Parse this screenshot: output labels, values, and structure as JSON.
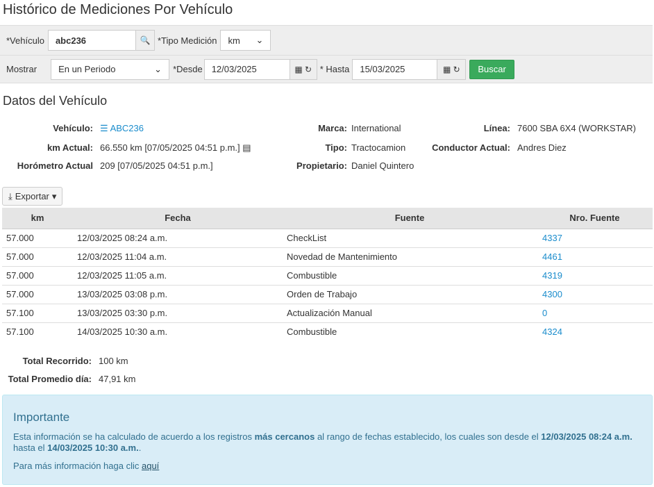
{
  "title": "Histórico de Mediciones Por Vehículo",
  "filters": {
    "vehiculo_label": "*Vehículo",
    "vehiculo_value": "abc236",
    "tipo_label": "*Tipo Medición",
    "tipo_value": "km",
    "mostrar_label": "Mostrar",
    "mostrar_value": "En un Periodo",
    "desde_label": "*Desde",
    "desde_value": "12/03/2025",
    "hasta_label": "* Hasta",
    "hasta_value": "15/03/2025",
    "buscar": "Buscar"
  },
  "vehicle": {
    "heading": "Datos del Vehículo",
    "vehiculo_k": "Vehículo:",
    "vehiculo_v": "ABC236",
    "km_k": "km Actual:",
    "km_v": "66.550 km [07/05/2025 04:51 p.m.]",
    "hor_k": "Horómetro Actual",
    "hor_v": "209 [07/05/2025 04:51 p.m.]",
    "marca_k": "Marca:",
    "marca_v": "International",
    "tipo_k": "Tipo:",
    "tipo_v": "Tractocamion",
    "prop_k": "Propietario:",
    "prop_v": "Daniel Quintero",
    "linea_k": "Línea:",
    "linea_v": "7600 SBA 6X4 (WORKSTAR)",
    "cond_k": "Conductor Actual:",
    "cond_v": "Andres Diez"
  },
  "export": "Exportar",
  "table": {
    "headers": [
      "km",
      "Fecha",
      "Fuente",
      "Nro. Fuente"
    ],
    "rows": [
      [
        "57.000",
        "12/03/2025 08:24 a.m.",
        "CheckList",
        "4337"
      ],
      [
        "57.000",
        "12/03/2025 11:04 a.m.",
        "Novedad de Mantenimiento",
        "4461"
      ],
      [
        "57.000",
        "12/03/2025 11:05 a.m.",
        "Combustible",
        "4319"
      ],
      [
        "57.000",
        "13/03/2025 03:08 p.m.",
        "Orden de Trabajo",
        "4300"
      ],
      [
        "57.100",
        "13/03/2025 03:30 p.m.",
        "Actualización Manual",
        "0"
      ],
      [
        "57.100",
        "14/03/2025 10:30 a.m.",
        "Combustible",
        "4324"
      ]
    ]
  },
  "totals": {
    "recorrido_k": "Total Recorrido:",
    "recorrido_v": "100 km",
    "promedio_k": "Total Promedio día:",
    "promedio_v": "47,91 km"
  },
  "alert": {
    "title": "Importante",
    "t1": "Esta información se ha calculado de acuerdo a los registros ",
    "b1": "más cercanos",
    "t2": " al rango de fechas establecido, los cuales son desde el ",
    "b2": "12/03/2025 08:24 a.m.",
    "t3": " hasta el ",
    "b3": "14/03/2025 10:30 a.m.",
    "t4": ".",
    "more": "Para más información haga clic ",
    "link": "aquí"
  }
}
